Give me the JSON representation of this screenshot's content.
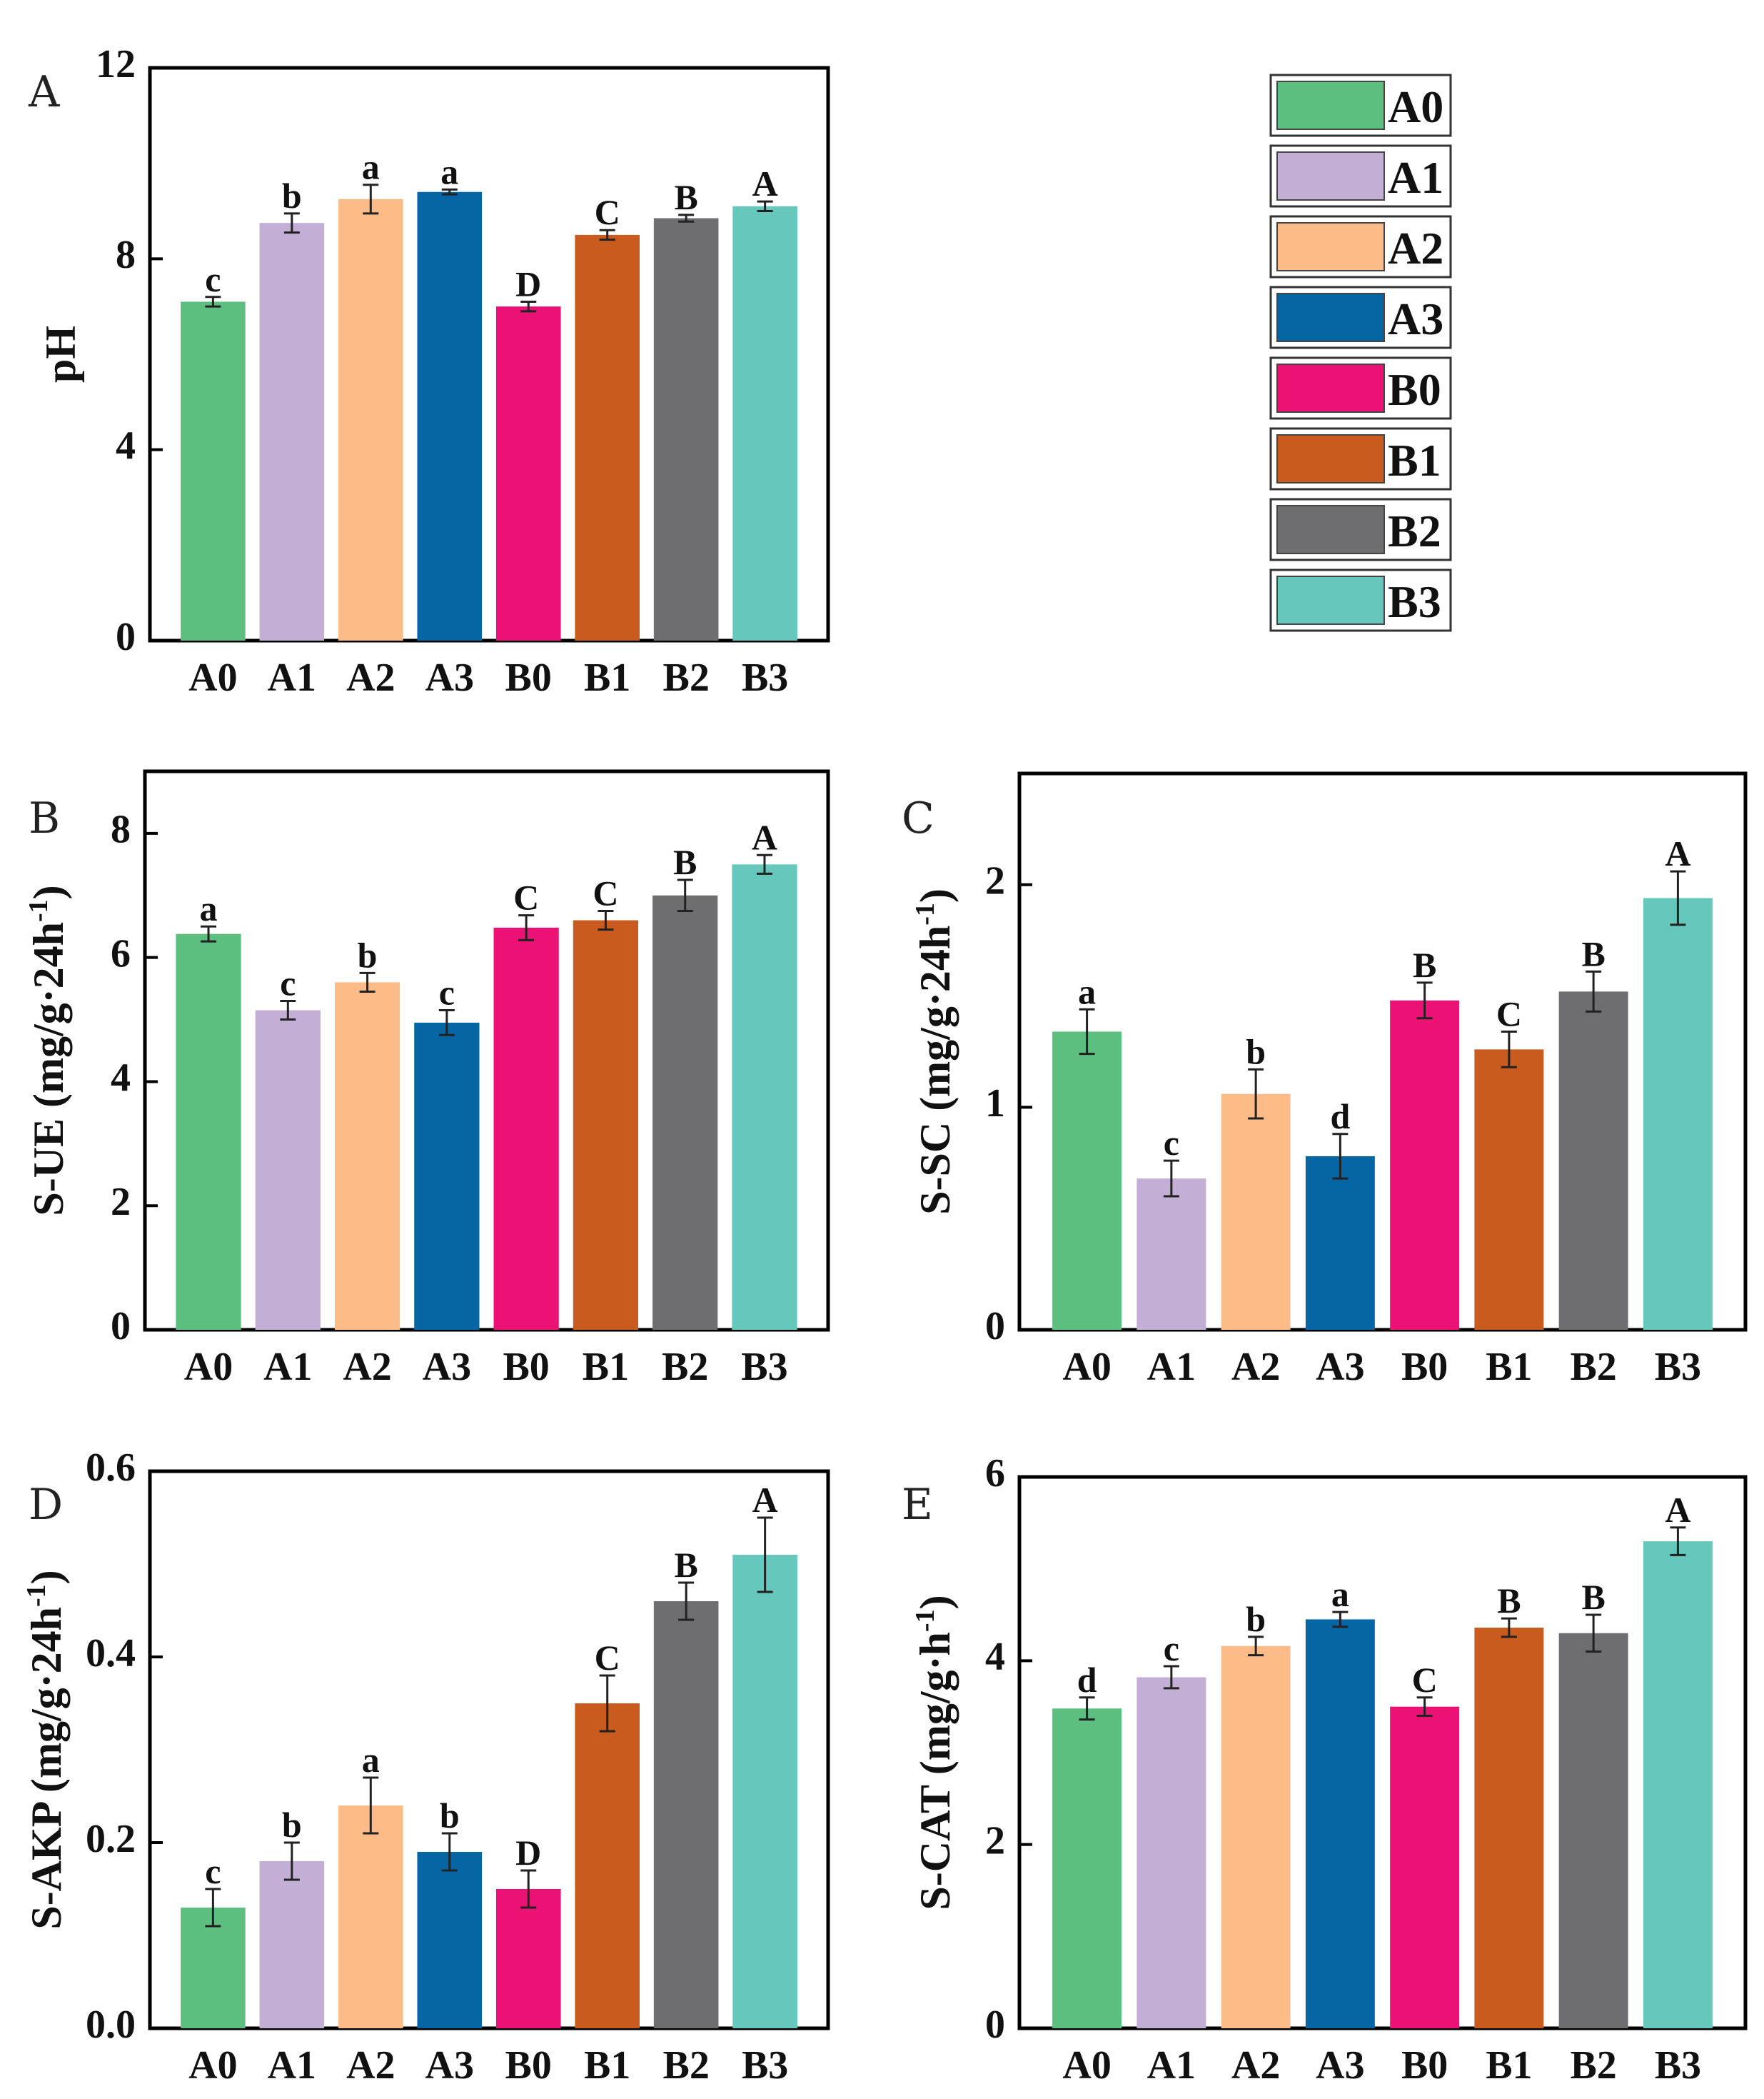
{
  "colors": {
    "A0": "#5dbf7f",
    "A1": "#c3aed6",
    "A2": "#fdbb87",
    "A3": "#0566a3",
    "B0": "#ec1275",
    "B1": "#c85b1d",
    "B2": "#6e6e70",
    "B3": "#66c8bc"
  },
  "legend": [
    "A0",
    "A1",
    "A2",
    "A3",
    "B0",
    "B1",
    "B2",
    "B3"
  ],
  "chart_data": [
    {
      "id": "A",
      "panel_letter": "A",
      "type": "bar",
      "ylabel": "pH",
      "ylim": [
        0,
        12
      ],
      "yticks": [
        "0",
        "4",
        "8",
        "12"
      ],
      "categories": [
        "A0",
        "A1",
        "A2",
        "A3",
        "B0",
        "B1",
        "B2",
        "B3"
      ],
      "values": [
        7.1,
        8.75,
        9.25,
        9.4,
        7.0,
        8.5,
        8.85,
        9.1
      ],
      "errors": [
        0.1,
        0.2,
        0.3,
        0.05,
        0.1,
        0.1,
        0.07,
        0.1
      ],
      "letters": [
        "c",
        "b",
        "a",
        "a",
        "D",
        "C",
        "B",
        "A"
      ]
    },
    {
      "id": "B",
      "panel_letter": "B",
      "type": "bar",
      "ylabel": "S-UE (mg/g·24h",
      "ylabel_sup": "-1",
      "ylabel_tail": ")",
      "ylim": [
        0,
        9
      ],
      "yticks": [
        "0",
        "2",
        "4",
        "6",
        "8"
      ],
      "categories": [
        "A0",
        "A1",
        "A2",
        "A3",
        "B0",
        "B1",
        "B2",
        "B3"
      ],
      "values": [
        6.38,
        5.15,
        5.6,
        4.95,
        6.48,
        6.6,
        7.0,
        7.5
      ],
      "errors": [
        0.12,
        0.15,
        0.15,
        0.2,
        0.2,
        0.15,
        0.25,
        0.15
      ],
      "letters": [
        "a",
        "c",
        "b",
        "c",
        "C",
        "C",
        "B",
        "A"
      ]
    },
    {
      "id": "C",
      "panel_letter": "C",
      "type": "bar",
      "ylabel": "S-SC (mg/g·24h",
      "ylabel_sup": "-1",
      "ylabel_tail": ")",
      "ylim": [
        0,
        2.5
      ],
      "yticks": [
        "0",
        "1",
        "2"
      ],
      "categories": [
        "A0",
        "A1",
        "A2",
        "A3",
        "B0",
        "B1",
        "B2",
        "B3"
      ],
      "values": [
        1.34,
        0.68,
        1.06,
        0.78,
        1.48,
        1.26,
        1.52,
        1.94
      ],
      "errors": [
        0.1,
        0.08,
        0.11,
        0.1,
        0.08,
        0.08,
        0.09,
        0.12
      ],
      "letters": [
        "a",
        "c",
        "b",
        "d",
        "B",
        "C",
        "B",
        "A"
      ]
    },
    {
      "id": "D",
      "panel_letter": "D",
      "type": "bar",
      "ylabel": "S-AKP (mg/g·24h",
      "ylabel_sup": "-1",
      "ylabel_tail": ")",
      "ylim": [
        0,
        0.6
      ],
      "yticks": [
        "0.0",
        "0.2",
        "0.4",
        "0.6"
      ],
      "categories": [
        "A0",
        "A1",
        "A2",
        "A3",
        "B0",
        "B1",
        "B2",
        "B3"
      ],
      "values": [
        0.13,
        0.18,
        0.24,
        0.19,
        0.15,
        0.35,
        0.46,
        0.51
      ],
      "errors": [
        0.02,
        0.02,
        0.03,
        0.02,
        0.02,
        0.03,
        0.02,
        0.04
      ],
      "letters": [
        "c",
        "b",
        "a",
        "b",
        "D",
        "C",
        "B",
        "A"
      ]
    },
    {
      "id": "E",
      "panel_letter": "E",
      "type": "bar",
      "ylabel": "S-CAT (mg/g·h",
      "ylabel_sup": "-1",
      "ylabel_tail": ")",
      "ylim": [
        0,
        6
      ],
      "yticks": [
        "0",
        "2",
        "4",
        "6"
      ],
      "categories": [
        "A0",
        "A1",
        "A2",
        "A3",
        "B0",
        "B1",
        "B2",
        "B3"
      ],
      "values": [
        3.48,
        3.82,
        4.16,
        4.45,
        3.5,
        4.36,
        4.3,
        5.3
      ],
      "errors": [
        0.12,
        0.12,
        0.1,
        0.08,
        0.1,
        0.1,
        0.2,
        0.15
      ],
      "letters": [
        "d",
        "c",
        "b",
        "a",
        "C",
        "B",
        "B",
        "A"
      ]
    }
  ]
}
